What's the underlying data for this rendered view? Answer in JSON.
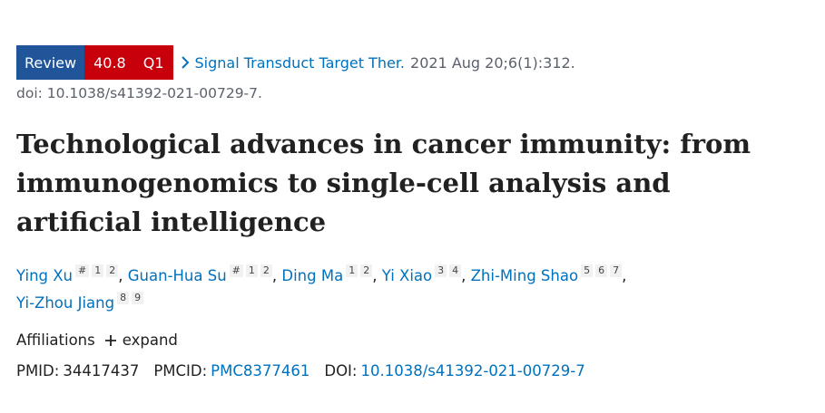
{
  "badges": {
    "type": "Review",
    "impact": "40.8",
    "quartile": "Q1"
  },
  "journal": "Signal Transduct Target Ther.",
  "citation": "2021 Aug 20;6(1):312.",
  "doi_line": "doi: 10.1038/s41392-021-00729-7.",
  "title": "Technological advances in cancer immunity: from immunogenomics to single-cell analysis and artificial intelligence",
  "author_separator": ",",
  "authors": [
    {
      "name": "Ying Xu",
      "marks": [
        "#",
        "1",
        "2"
      ]
    },
    {
      "name": "Guan-Hua Su",
      "marks": [
        "#",
        "1",
        "2"
      ]
    },
    {
      "name": "Ding Ma",
      "marks": [
        "1",
        "2"
      ]
    },
    {
      "name": "Yi Xiao",
      "marks": [
        "3",
        "4"
      ]
    },
    {
      "name": "Zhi-Ming Shao",
      "marks": [
        "5",
        "6",
        "7"
      ]
    },
    {
      "name": "Yi-Zhou Jiang",
      "marks": [
        "8",
        "9"
      ]
    }
  ],
  "affiliations": {
    "label": "Affiliations",
    "action": "expand"
  },
  "identifiers": {
    "pmid_label": "PMID:",
    "pmid": "34417437",
    "pmcid_label": "PMCID:",
    "pmcid": "PMC8377461",
    "doi_label": "DOI:",
    "doi": "10.1038/s41392-021-00729-7"
  }
}
